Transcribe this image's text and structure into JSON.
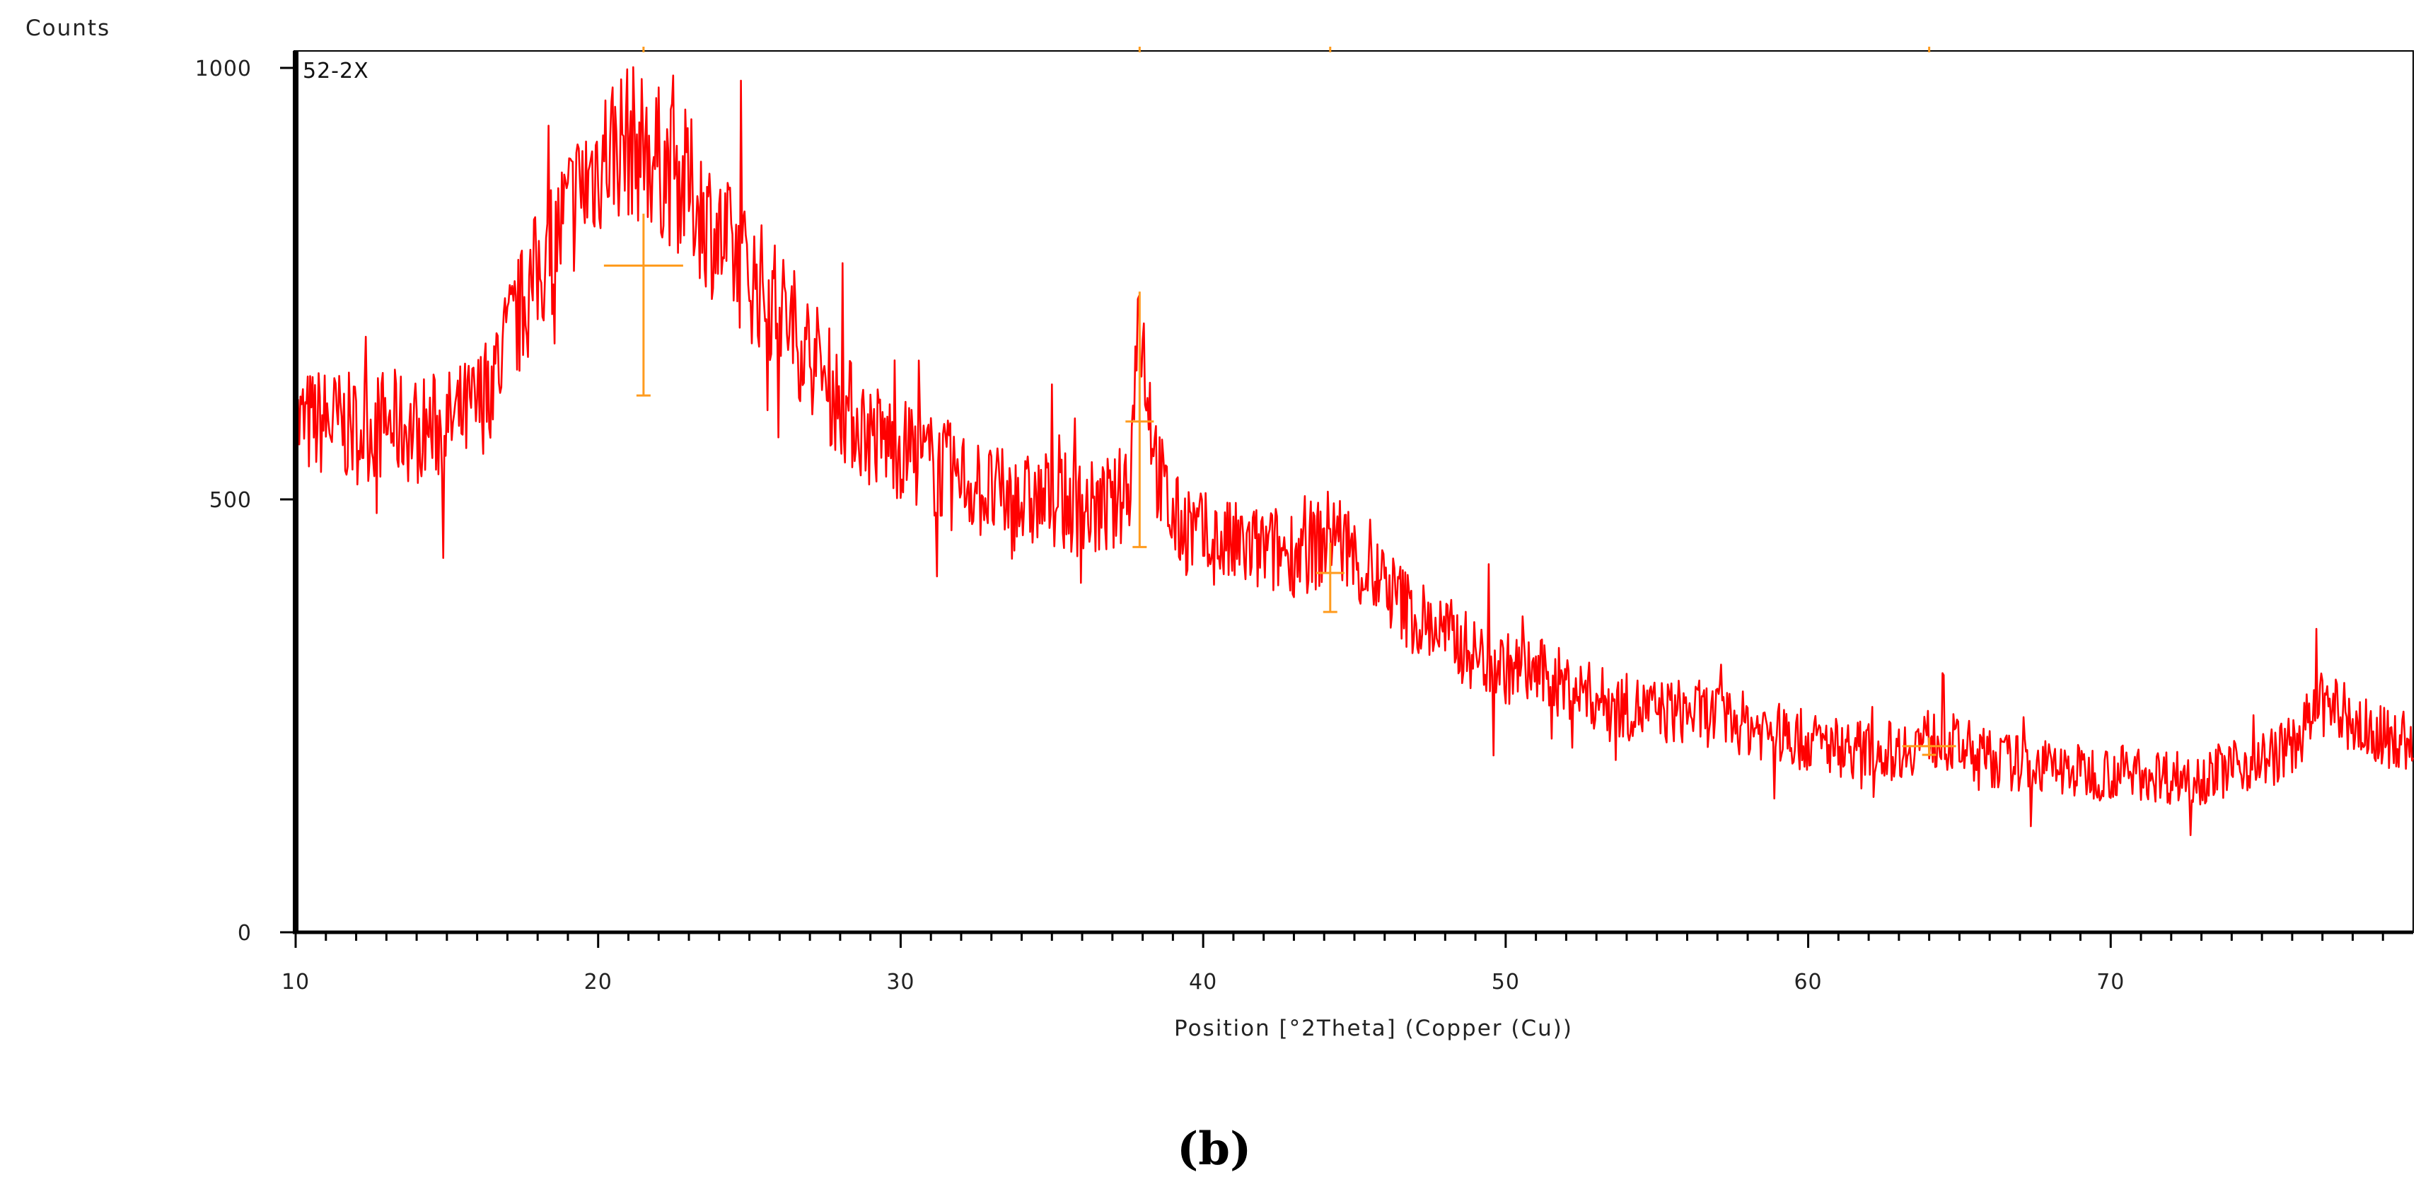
{
  "figure": {
    "caption": "(b)",
    "sample_label": "52-2X"
  },
  "colors": {
    "pattern": "#ff0000",
    "reference_peaks": "#ff9b1e",
    "axis": "#000000"
  },
  "chart_data": {
    "type": "line",
    "title": "",
    "xlabel": "Position [°2Theta] (Copper (Cu))",
    "ylabel": "Counts",
    "xlim": [
      10,
      80
    ],
    "ylim": [
      0,
      1000
    ],
    "x_ticks": [
      10,
      20,
      30,
      40,
      50,
      60,
      70
    ],
    "y_ticks": [
      0,
      500,
      1000
    ],
    "x_tick_labels": [
      "10",
      "20",
      "30",
      "40",
      "50",
      "60",
      "70"
    ],
    "y_tick_labels": [
      "0",
      "500",
      "1000"
    ],
    "grid": false,
    "series": [
      {
        "name": "",
        "color": "#ff0000",
        "x": [
          10,
          11,
          12,
          13,
          14,
          15,
          16,
          17,
          18,
          19,
          20,
          20.5,
          21,
          21.5,
          22,
          23,
          24,
          25,
          26,
          27,
          28,
          29,
          30,
          31,
          32,
          33,
          34,
          35,
          36,
          37,
          37.6,
          37.85,
          38.1,
          38.5,
          39,
          40,
          41,
          42,
          43,
          44,
          44.3,
          44.6,
          45,
          46,
          47,
          48,
          49,
          50,
          51,
          52,
          53,
          54,
          55,
          56,
          57,
          58,
          59,
          60,
          61,
          62,
          63,
          64,
          65,
          66,
          67,
          68,
          69,
          70,
          71,
          72,
          73,
          74,
          75,
          76,
          77,
          78,
          79,
          80
        ],
        "y": [
          585,
          590,
          580,
          588,
          580,
          585,
          605,
          680,
          760,
          830,
          890,
          910,
          915,
          905,
          890,
          860,
          800,
          760,
          720,
          670,
          610,
          575,
          560,
          540,
          525,
          505,
          495,
          500,
          490,
          485,
          530,
          725,
          650,
          530,
          475,
          455,
          445,
          440,
          440,
          450,
          470,
          450,
          430,
          400,
          365,
          345,
          320,
          305,
          300,
          285,
          270,
          260,
          255,
          255,
          250,
          240,
          230,
          220,
          215,
          210,
          210,
          225,
          215,
          200,
          195,
          190,
          185,
          185,
          185,
          180,
          180,
          190,
          200,
          215,
          265,
          240,
          225,
          220
        ]
      }
    ],
    "reference_peaks": [
      {
        "x": 21.5,
        "y_top": 830,
        "y_bottom": 620,
        "marker_y": 770,
        "label": ""
      },
      {
        "x": 37.9,
        "y_top": 740,
        "y_bottom": 445,
        "marker_y": 590,
        "label": ""
      },
      {
        "x": 44.2,
        "y_top": 450,
        "y_bottom": 370,
        "marker_y": 415,
        "label": ""
      },
      {
        "x": 64.0,
        "y_top": 225,
        "y_bottom": 205,
        "marker_y": 215,
        "label": ""
      }
    ]
  }
}
